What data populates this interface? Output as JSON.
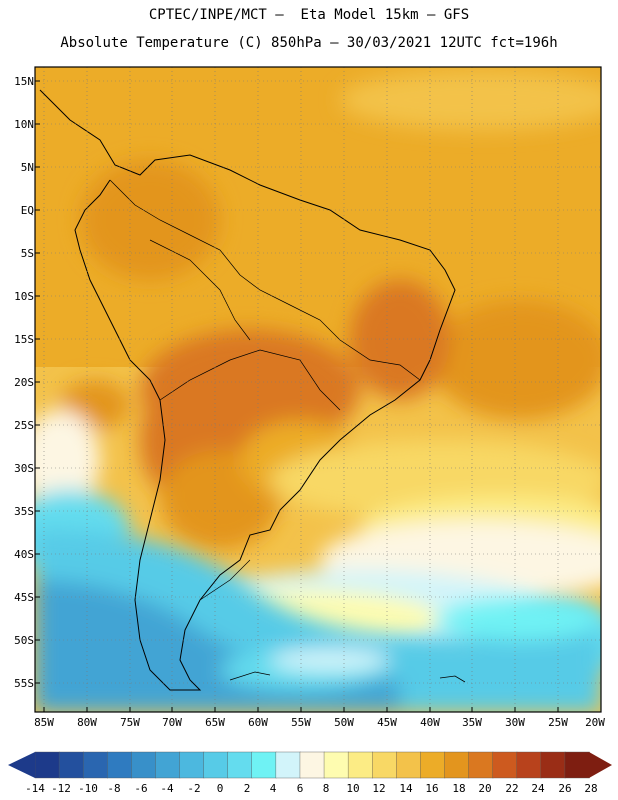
{
  "header": {
    "line1": "CPTEC/INPE/MCT –  Eta Model 15km – GFS",
    "line2": "Absolute Temperature (C) 850hPa – 30/03/2021 12UTC fct=196h"
  },
  "axes": {
    "latitude_labels": [
      "15N",
      "10N",
      "5N",
      "EQ",
      "5S",
      "10S",
      "15S",
      "20S",
      "25S",
      "30S",
      "35S",
      "40S",
      "45S",
      "50S",
      "55S"
    ],
    "longitude_labels": [
      "85W",
      "80W",
      "75W",
      "70W",
      "65W",
      "60W",
      "55W",
      "50W",
      "45W",
      "40W",
      "35W",
      "30W",
      "25W",
      "20W"
    ]
  },
  "colorbar": {
    "labels": [
      "-14",
      "-12",
      "-10",
      "-8",
      "-6",
      "-4",
      "-2",
      "0",
      "2",
      "4",
      "6",
      "8",
      "10",
      "12",
      "14",
      "16",
      "18",
      "20",
      "22",
      "24",
      "26",
      "28"
    ],
    "colors": [
      "#1d3a8a",
      "#23509e",
      "#2a66b0",
      "#2f7bc0",
      "#3890c9",
      "#42a4d4",
      "#4cb8df",
      "#57cbe7",
      "#64dcee",
      "#6ff2f4",
      "#d2f4fa",
      "#fdf6e3",
      "#fefcb0",
      "#fcec85",
      "#f8d865",
      "#f3c24a",
      "#ecac28",
      "#e3951e",
      "#da7820",
      "#cd5a1f",
      "#b8421c",
      "#9a2d16",
      "#7e1e11"
    ]
  }
}
